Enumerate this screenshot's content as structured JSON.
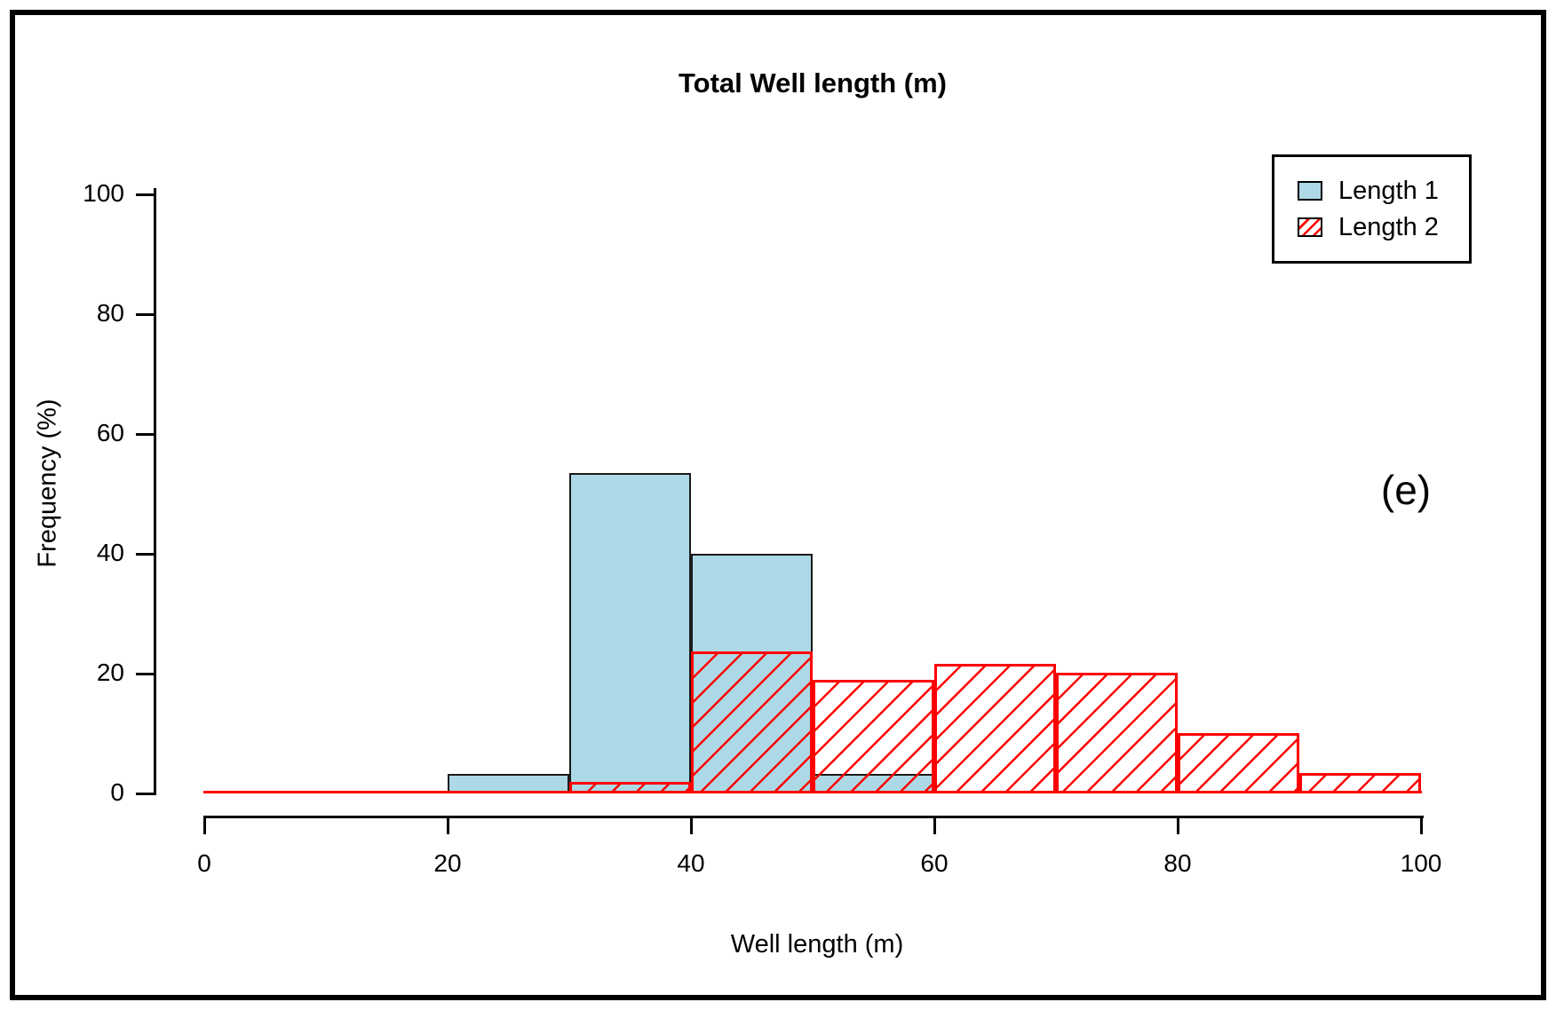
{
  "figure": {
    "panel_label": "(e)"
  },
  "chart_data": {
    "type": "histogram",
    "title": "Total Well length (m)",
    "xlabel": "Well length (m)",
    "ylabel": "Frequency (%)",
    "xlim": [
      0,
      100
    ],
    "ylim": [
      0,
      100
    ],
    "x_ticks": [
      0,
      20,
      40,
      60,
      80,
      100
    ],
    "y_ticks": [
      0,
      20,
      40,
      60,
      80,
      100
    ],
    "bin_width": 10,
    "grid": "off",
    "legend_position": "top-right",
    "series": [
      {
        "name": "Length 1",
        "style": "solid",
        "fill_color": "#ADD8E6",
        "border_color": "#000000",
        "bins": [
          {
            "x0": 20,
            "x1": 30,
            "value": 3.3
          },
          {
            "x0": 30,
            "x1": 40,
            "value": 53.5
          },
          {
            "x0": 40,
            "x1": 50,
            "value": 40.0
          },
          {
            "x0": 50,
            "x1": 60,
            "value": 3.3
          }
        ]
      },
      {
        "name": "Length 2",
        "style": "hatched",
        "hatch_color": "#FF0000",
        "border_color": "#FF0000",
        "bins": [
          {
            "x0": 30,
            "x1": 40,
            "value": 1.9
          },
          {
            "x0": 40,
            "x1": 50,
            "value": 23.7
          },
          {
            "x0": 50,
            "x1": 60,
            "value": 19.0
          },
          {
            "x0": 60,
            "x1": 70,
            "value": 21.7
          },
          {
            "x0": 70,
            "x1": 80,
            "value": 20.2
          },
          {
            "x0": 80,
            "x1": 90,
            "value": 10.1
          },
          {
            "x0": 90,
            "x1": 100,
            "value": 3.4
          }
        ]
      }
    ]
  }
}
